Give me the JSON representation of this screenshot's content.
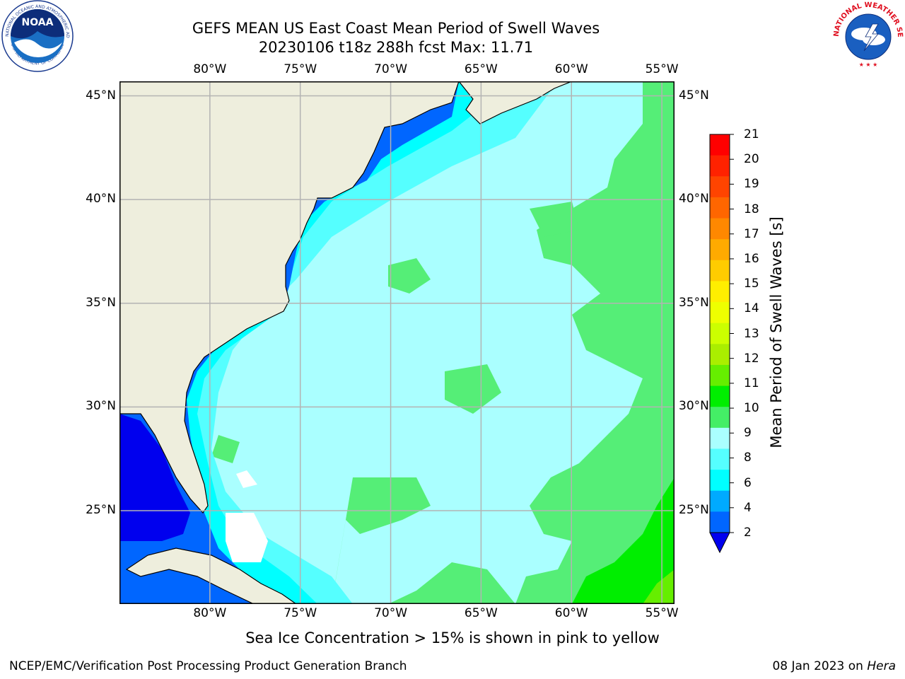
{
  "title": {
    "line1": "GEFS MEAN US East Coast Mean Period of Swell Waves",
    "line2": "20230106 t18z 288h fcst   Max: 11.71"
  },
  "map": {
    "lon_labels": [
      "80°W",
      "75°W",
      "70°W",
      "65°W",
      "60°W",
      "55°W"
    ],
    "lat_labels": [
      "45°N",
      "40°N",
      "35°N",
      "30°N",
      "25°N"
    ],
    "lon_values": [
      -80,
      -75,
      -70,
      -65,
      -60,
      -55
    ],
    "lat_values": [
      45,
      40,
      35,
      30,
      25
    ],
    "extent": {
      "lon_min": -85,
      "lon_max": -54.3,
      "lat_min": 20.5,
      "lat_max": 45.7
    },
    "land_color": "#eeeedd",
    "grid_color": "#b3b3b3"
  },
  "colorbar": {
    "label": "Mean Period of Swell Waves [s]",
    "ticks": [
      "21",
      "20",
      "19",
      "18",
      "17",
      "16",
      "15",
      "14",
      "13",
      "12",
      "11",
      "10",
      "9",
      "8",
      "6",
      "4",
      "2"
    ],
    "colors_top_to_bottom": [
      "#ff0000",
      "#ff2200",
      "#ff4400",
      "#ff6600",
      "#ff8800",
      "#ffaa00",
      "#ffcc00",
      "#ffee00",
      "#eeff00",
      "#ccff00",
      "#aaee00",
      "#66ee00",
      "#00ee00",
      "#44ee66",
      "#aaffff",
      "#55ffff",
      "#00ffff",
      "#00aaff",
      "#0066ff"
    ],
    "extend_color": "#0000ee"
  },
  "note": "Sea Ice Concentration > 15% is shown in pink to yellow",
  "footer": {
    "left": "NCEP/EMC/Verification Post Processing Product Generation Branch",
    "right_date": "08 Jan 2023 on ",
    "right_host": "Hera"
  },
  "logos": {
    "noaa_text": "NOAA",
    "noaa_ring": "NATIONAL OCEANIC AND ATMOSPHERIC ADMINISTRATION",
    "noaa_ring_bottom": "U.S. DEPARTMENT OF COMMERCE",
    "nws_ring": "NATIONAL WEATHER SERVICE"
  }
}
